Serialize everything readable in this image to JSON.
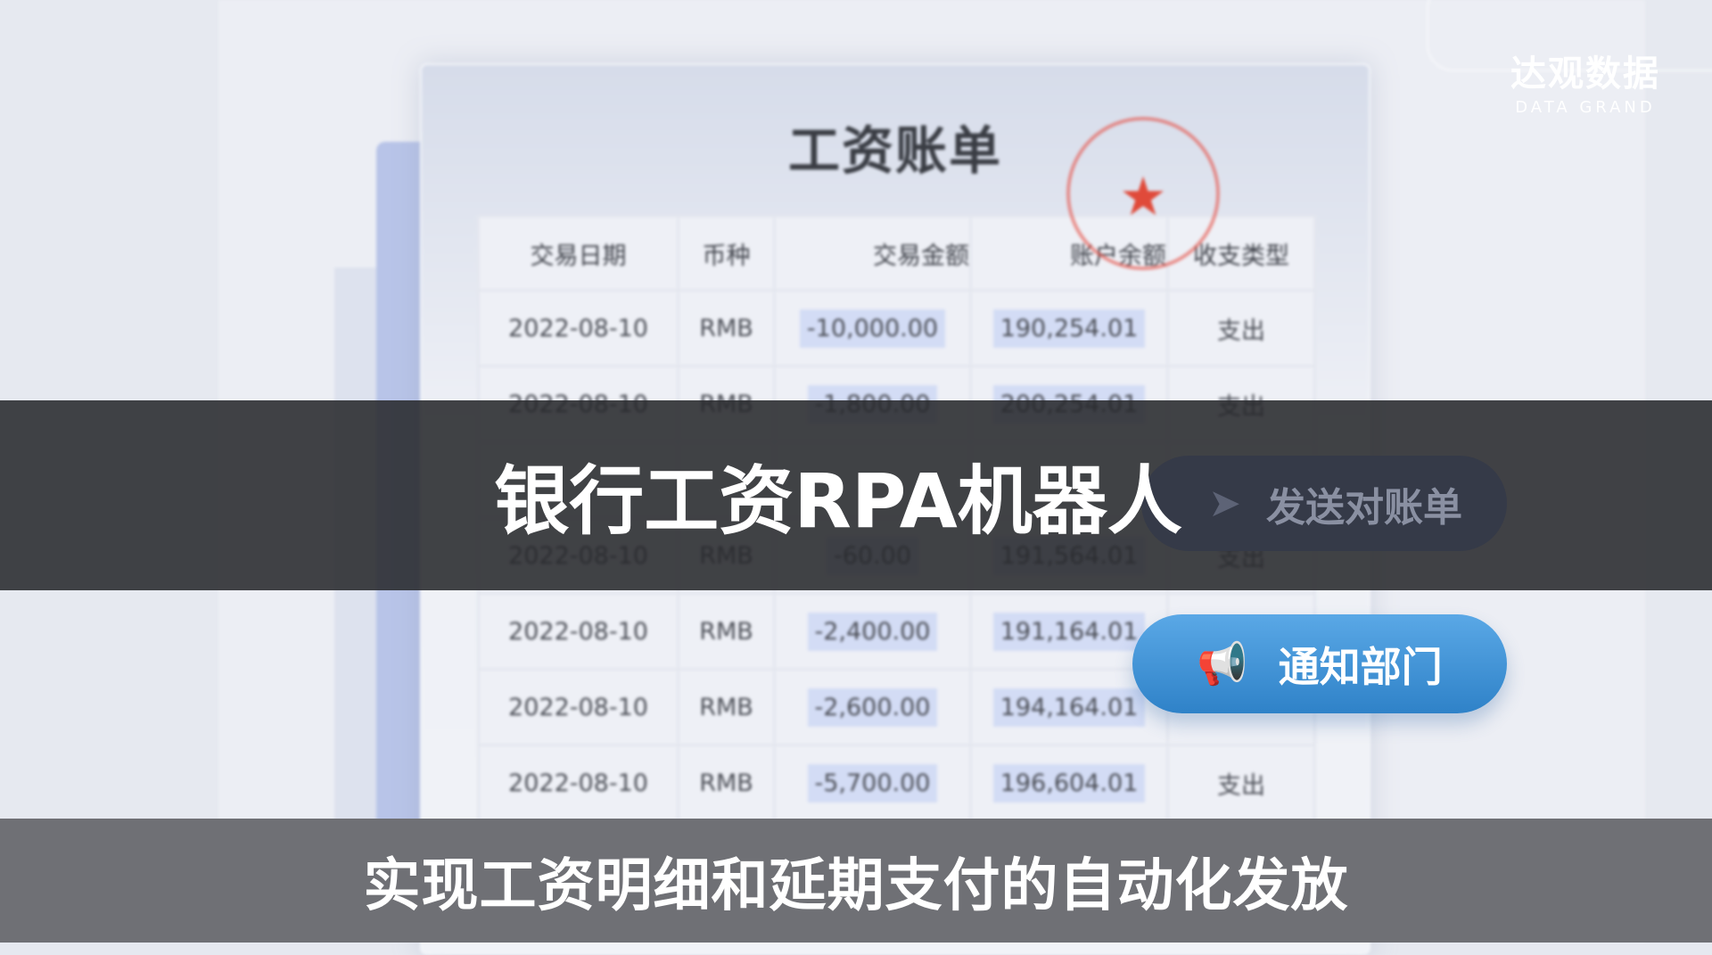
{
  "bill": {
    "title": "工资账单",
    "stamp_icon": "red-star-seal",
    "headers": [
      "交易日期",
      "币种",
      "交易金额",
      "账户余额",
      "收支类型"
    ],
    "rows": [
      [
        "2022-08-10",
        "RMB",
        "-10,000.00",
        "190,254.01",
        "支出"
      ],
      [
        "2022-08-10",
        "RMB",
        "-1,800.00",
        "200,254.01",
        "支出"
      ],
      [
        "",
        "",
        "",
        "",
        ""
      ],
      [
        "2022-08-10",
        "RMB",
        "-60.00",
        "191,564.01",
        "支出"
      ],
      [
        "2022-08-10",
        "RMB",
        "-2,400.00",
        "191,164.01",
        ""
      ],
      [
        "2022-08-10",
        "RMB",
        "-2,600.00",
        "194,164.01",
        ""
      ],
      [
        "2022-08-10",
        "RMB",
        "-5,700.00",
        "196,604.01",
        "支出"
      ]
    ]
  },
  "buttons": {
    "send": {
      "label": "发送对账单",
      "icon": "paper-plane-icon"
    },
    "notify": {
      "label": "通知部门",
      "icon": "megaphone-icon"
    }
  },
  "logo": {
    "cn": "达观数据",
    "en": "DATA GRAND"
  },
  "caption": {
    "title": "银行工资RPA机器人",
    "subtitle": "实现工资明细和延期支付的自动化发放"
  },
  "colors": {
    "accent": "#3a8ad3",
    "band": "#28292c",
    "subtitle_bar": "#6f7075",
    "stamp": "#e04a3a"
  }
}
